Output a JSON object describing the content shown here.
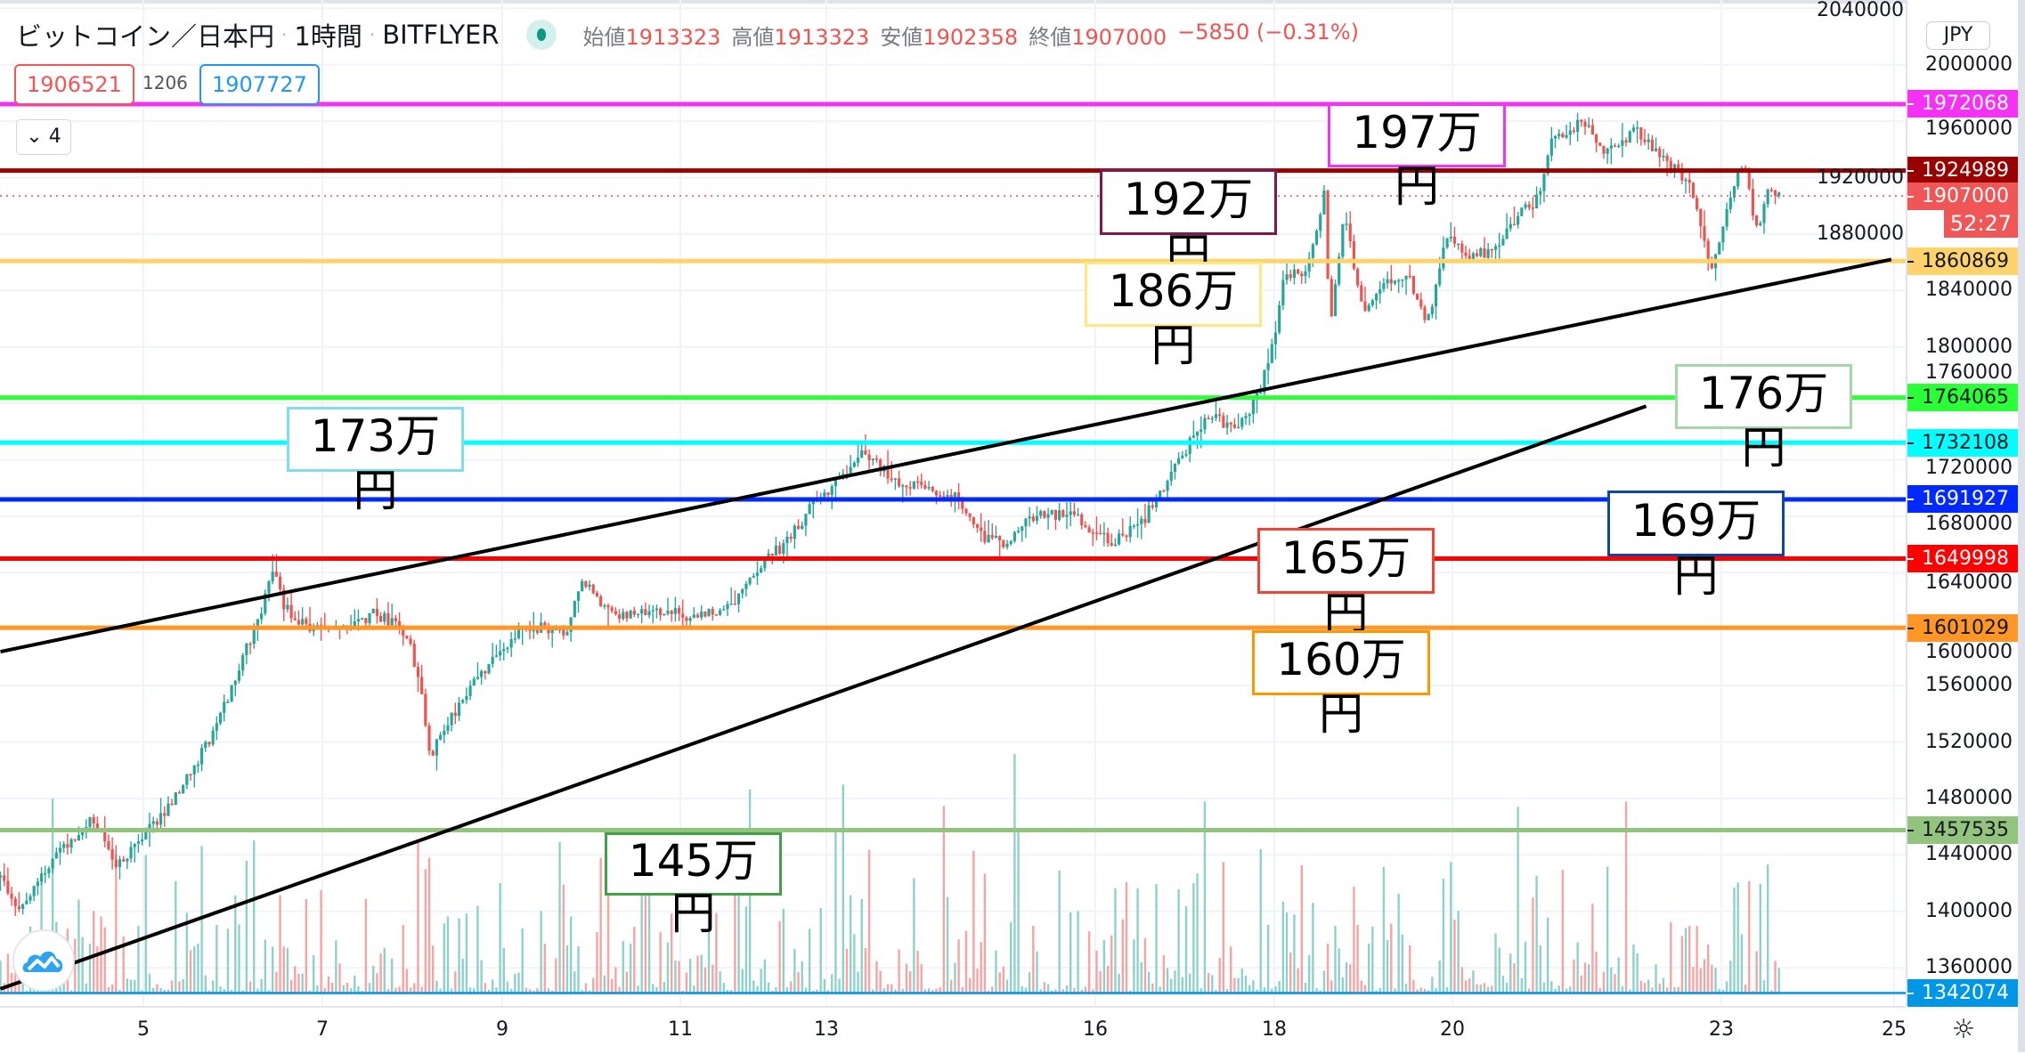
{
  "header": {
    "symbol": "ビットコイン／日本円",
    "interval": "1時間",
    "exchange": "BITFLYER",
    "status_color": "#089981",
    "ohlc": [
      {
        "label": "始値",
        "value": "1913323"
      },
      {
        "label": "高値",
        "value": "1913323"
      },
      {
        "label": "安値",
        "value": "1902358"
      },
      {
        "label": "終値",
        "value": "1907000"
      }
    ],
    "change": "−5850 (−0.31%)"
  },
  "quote": {
    "bid": "1906521",
    "spread": "1206",
    "ask": "1907727"
  },
  "indicators_toggle": {
    "icon": "chevron-down-icon",
    "count": "4"
  },
  "price_axis": {
    "currency": "JPY",
    "ticks": [
      "2040000",
      "2000000",
      "1960000",
      "1920000",
      "1880000",
      "1840000",
      "1800000",
      "1760000",
      "1720000",
      "1680000",
      "1640000",
      "1600000",
      "1560000",
      "1520000",
      "1480000",
      "1440000",
      "1400000",
      "1360000"
    ],
    "countdown": "52:27"
  },
  "time_axis": {
    "ticks": [
      "5",
      "7",
      "9",
      "11",
      "13",
      "16",
      "18",
      "20",
      "23",
      "25"
    ]
  },
  "chart_data": {
    "type": "candlestick",
    "interval": "1時間",
    "ylim": [
      1335000,
      2045000
    ],
    "up_color": "#26a69a",
    "down_color": "#ef5350",
    "price_path_day_price": [
      [
        3.77,
        1424000
      ],
      [
        3.99,
        1401000
      ],
      [
        4.35,
        1438000
      ],
      [
        4.78,
        1465000
      ],
      [
        5.07,
        1433000
      ],
      [
        5.36,
        1451000
      ],
      [
        5.79,
        1488000
      ],
      [
        6.15,
        1525000
      ],
      [
        6.44,
        1575000
      ],
      [
        6.66,
        1607000
      ],
      [
        6.8,
        1643000
      ],
      [
        6.94,
        1616000
      ],
      [
        7.23,
        1598000
      ],
      [
        7.59,
        1602000
      ],
      [
        7.95,
        1611000
      ],
      [
        8.31,
        1598000
      ],
      [
        8.46,
        1561000
      ],
      [
        8.57,
        1506000
      ],
      [
        8.75,
        1534000
      ],
      [
        8.96,
        1552000
      ],
      [
        9.32,
        1584000
      ],
      [
        9.68,
        1602000
      ],
      [
        10.12,
        1598000
      ],
      [
        10.26,
        1639000
      ],
      [
        10.55,
        1611000
      ],
      [
        11.27,
        1611000
      ],
      [
        11.56,
        1607000
      ],
      [
        11.99,
        1620000
      ],
      [
        12.28,
        1648000
      ],
      [
        12.57,
        1662000
      ],
      [
        12.86,
        1689000
      ],
      [
        13.15,
        1707000
      ],
      [
        13.44,
        1726000
      ],
      [
        13.73,
        1707000
      ],
      [
        14.16,
        1698000
      ],
      [
        14.45,
        1694000
      ],
      [
        14.74,
        1666000
      ],
      [
        15.02,
        1662000
      ],
      [
        15.31,
        1680000
      ],
      [
        15.75,
        1680000
      ],
      [
        16.18,
        1662000
      ],
      [
        16.47,
        1671000
      ],
      [
        16.76,
        1698000
      ],
      [
        17.04,
        1730000
      ],
      [
        17.26,
        1753000
      ],
      [
        17.55,
        1740000
      ],
      [
        17.84,
        1767000
      ],
      [
        17.98,
        1799000
      ],
      [
        18.13,
        1854000
      ],
      [
        18.34,
        1849000
      ],
      [
        18.56,
        1909000
      ],
      [
        18.63,
        1817000
      ],
      [
        18.78,
        1895000
      ],
      [
        18.99,
        1826000
      ],
      [
        19.21,
        1845000
      ],
      [
        19.5,
        1849000
      ],
      [
        19.72,
        1817000
      ],
      [
        19.93,
        1881000
      ],
      [
        20.22,
        1863000
      ],
      [
        20.51,
        1872000
      ],
      [
        20.73,
        1895000
      ],
      [
        20.94,
        1904000
      ],
      [
        21.09,
        1945000
      ],
      [
        21.45,
        1959000
      ],
      [
        21.73,
        1936000
      ],
      [
        22.02,
        1954000
      ],
      [
        22.38,
        1931000
      ],
      [
        22.67,
        1913000
      ],
      [
        22.89,
        1854000
      ],
      [
        23.1,
        1909000
      ],
      [
        23.25,
        1931000
      ],
      [
        23.39,
        1881000
      ],
      [
        23.54,
        1913000
      ],
      [
        23.65,
        1907000
      ]
    ],
    "last_price": 1907000,
    "horizontal_lines": [
      {
        "price": "1972068",
        "color": "#f531f5",
        "text_color": "#ffffff",
        "note": "197万円",
        "note_color": "#f531f5"
      },
      {
        "price": "1924989",
        "color": "#990000",
        "text_color": "#ffffff",
        "note": "192万円",
        "note_color": "#7f1650"
      },
      {
        "price": "1860869",
        "color": "#ffd36b",
        "text_color": "#131722",
        "note": "186万円",
        "note_color": "#ffe880"
      },
      {
        "price": "1764065",
        "color": "#2bff38",
        "text_color": "#131722",
        "note": "176万円",
        "note_color": "#a5d6a7"
      },
      {
        "price": "1732108",
        "color": "#00ffff",
        "text_color": "#131722",
        "note": "173万円",
        "note_color": "#80deea"
      },
      {
        "price": "1691927",
        "color": "#0029ff",
        "text_color": "#ffffff",
        "note": "169万円",
        "note_color": "#0d47a1"
      },
      {
        "price": "1649998",
        "color": "#ff0000",
        "text_color": "#ffffff",
        "note": "165万円",
        "note_color": "#f44336"
      },
      {
        "price": "1601029",
        "color": "#ff9626",
        "text_color": "#131722",
        "note": "160万円",
        "note_color": "#ff9800"
      },
      {
        "price": "1457535",
        "color": "#93c47d",
        "text_color": "#131722",
        "note": "145万円",
        "note_color": "#43a047"
      },
      {
        "price": "1342074",
        "color": "#0096e6",
        "text_color": "#ffffff",
        "note": "",
        "note_color": ""
      }
    ],
    "current_price_label": {
      "price": "1907000",
      "color": "#f05656"
    },
    "trend_lines": [
      {
        "from": [
          3.77,
          1584000
        ],
        "to": [
          24.9,
          1862000
        ]
      },
      {
        "from": [
          3.77,
          1345000
        ],
        "to": [
          22.16,
          1758000
        ]
      }
    ]
  }
}
